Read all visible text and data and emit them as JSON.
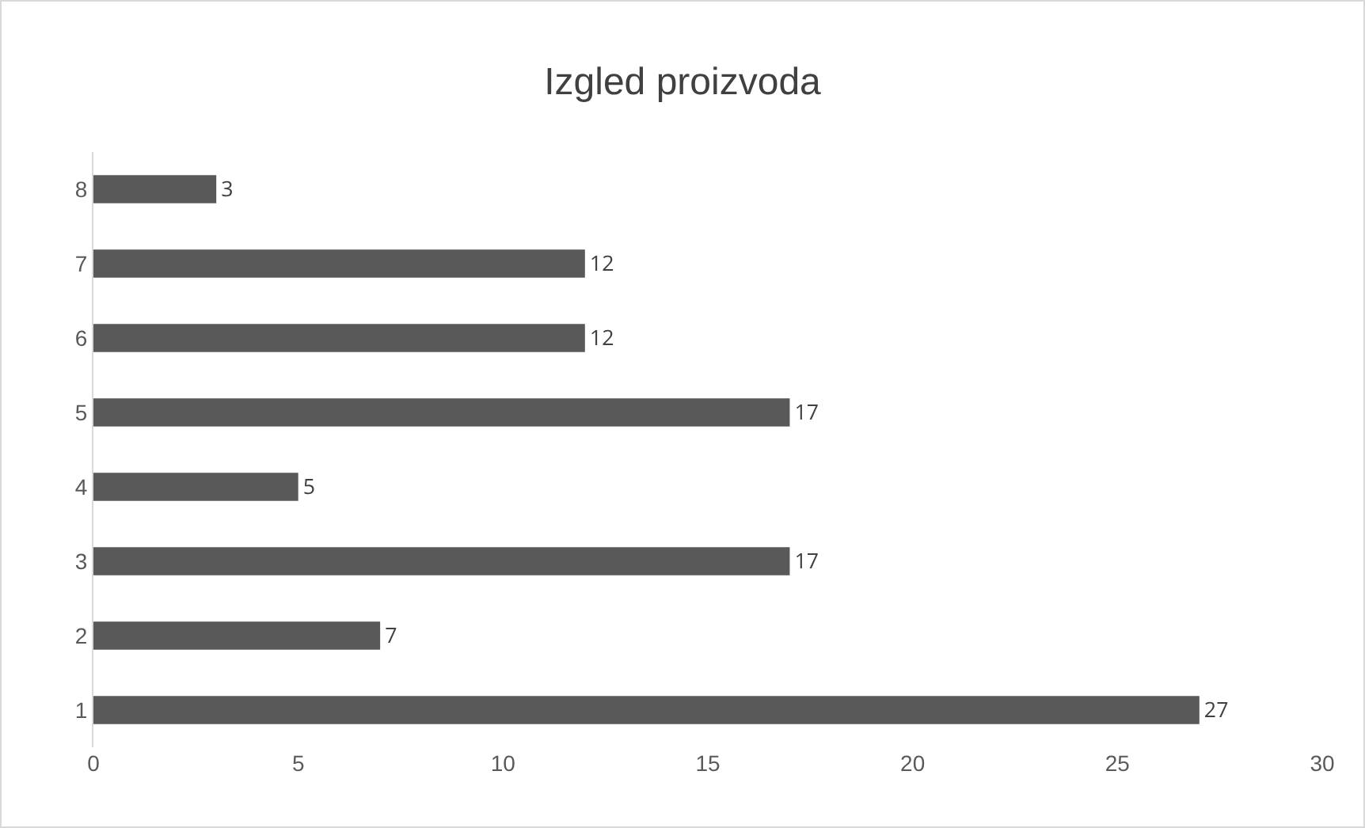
{
  "chart_data": {
    "type": "bar",
    "title": "Izgled proizvoda",
    "orientation": "horizontal",
    "categories": [
      "8",
      "7",
      "6",
      "5",
      "4",
      "3",
      "2",
      "1"
    ],
    "values": [
      3,
      12,
      12,
      17,
      5,
      17,
      7,
      27
    ],
    "color": "#595959",
    "xlim": [
      0,
      30
    ],
    "xticks": [
      0,
      5,
      10,
      15,
      20,
      25,
      30
    ],
    "grid": false,
    "data_labels": true
  }
}
